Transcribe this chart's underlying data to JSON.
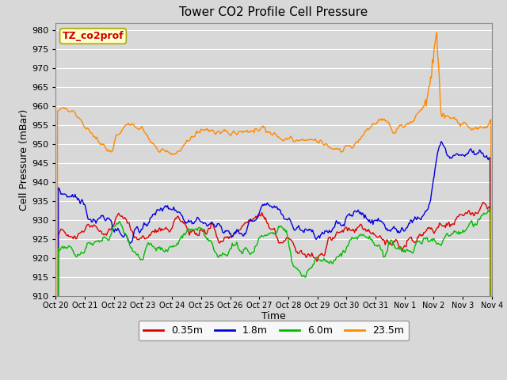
{
  "title": "Tower CO2 Profile Cell Pressure",
  "xlabel": "Time",
  "ylabel": "Cell Pressure (mBar)",
  "ylim": [
    910,
    982
  ],
  "yticks": [
    910,
    915,
    920,
    925,
    930,
    935,
    940,
    945,
    950,
    955,
    960,
    965,
    970,
    975,
    980
  ],
  "bg_color": "#d8d8d8",
  "plot_bg_color": "#d8d8d8",
  "grid_color": "#ffffff",
  "tag_label": "TZ_co2prof",
  "tag_color": "#cc0000",
  "tag_bg": "#ffffcc",
  "tag_edge": "#aaaa00",
  "colors": {
    "0.35m": "#dd0000",
    "1.8m": "#0000dd",
    "6.0m": "#00bb00",
    "23.5m": "#ff8800"
  },
  "line_width": 1.0,
  "n_points": 500,
  "xtick_labels": [
    "Oct 20",
    "Oct 21",
    "Oct 22",
    "Oct 23",
    "Oct 24",
    "Oct 25",
    "Oct 26",
    "Oct 27",
    "Oct 28",
    "Oct 29",
    "Oct 30",
    "Oct 31",
    "Nov 1",
    "Nov 2",
    "Nov 3",
    "Nov 4"
  ],
  "legend_labels": [
    "0.35m",
    "1.8m",
    "6.0m",
    "23.5m"
  ]
}
